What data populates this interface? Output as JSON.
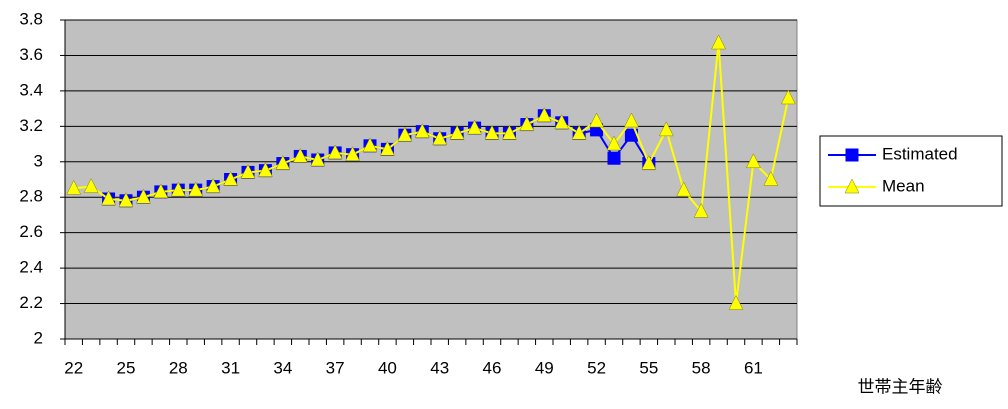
{
  "chart_data": {
    "type": "line",
    "x_label": "世帯主年齢",
    "categories": [
      "22",
      null,
      null,
      "25",
      null,
      null,
      "28",
      null,
      null,
      "31",
      null,
      null,
      "34",
      null,
      null,
      "37",
      null,
      null,
      "40",
      null,
      null,
      "43",
      null,
      null,
      "46",
      null,
      null,
      "49",
      null,
      null,
      "52",
      null,
      null,
      "55",
      null,
      null,
      "58",
      null,
      null,
      "61",
      null,
      null
    ],
    "series": [
      {
        "name": "Estimated",
        "color": "#0000ff",
        "marker": "square",
        "values": [
          null,
          null,
          2.79,
          2.78,
          2.8,
          2.83,
          2.84,
          2.84,
          2.86,
          2.9,
          2.94,
          2.95,
          2.99,
          3.03,
          3.01,
          3.05,
          3.04,
          3.09,
          3.07,
          3.15,
          3.17,
          3.13,
          3.16,
          3.19,
          3.16,
          3.16,
          3.21,
          3.26,
          3.22,
          3.16,
          3.18,
          3.02,
          3.15,
          2.99,
          null,
          null,
          null,
          null,
          null,
          null,
          null,
          null
        ]
      },
      {
        "name": "Mean",
        "color": "#ffff00",
        "marker": "triangle",
        "values": [
          2.85,
          2.86,
          2.79,
          2.78,
          2.8,
          2.83,
          2.84,
          2.84,
          2.86,
          2.9,
          2.94,
          2.95,
          2.99,
          3.03,
          3.01,
          3.05,
          3.04,
          3.09,
          3.07,
          3.15,
          3.17,
          3.13,
          3.16,
          3.19,
          3.16,
          3.16,
          3.21,
          3.26,
          3.22,
          3.16,
          3.23,
          3.1,
          3.23,
          2.99,
          3.18,
          2.84,
          2.72,
          3.67,
          2.2,
          3.0,
          2.9,
          3.36
        ]
      }
    ],
    "ylim": [
      2,
      3.8
    ],
    "yticks": [
      2,
      2.2,
      2.4,
      2.6,
      2.8,
      3,
      3.2,
      3.4,
      3.6,
      3.8
    ],
    "grid": true,
    "plot_background": "#c0c0c0",
    "legend": "right"
  }
}
